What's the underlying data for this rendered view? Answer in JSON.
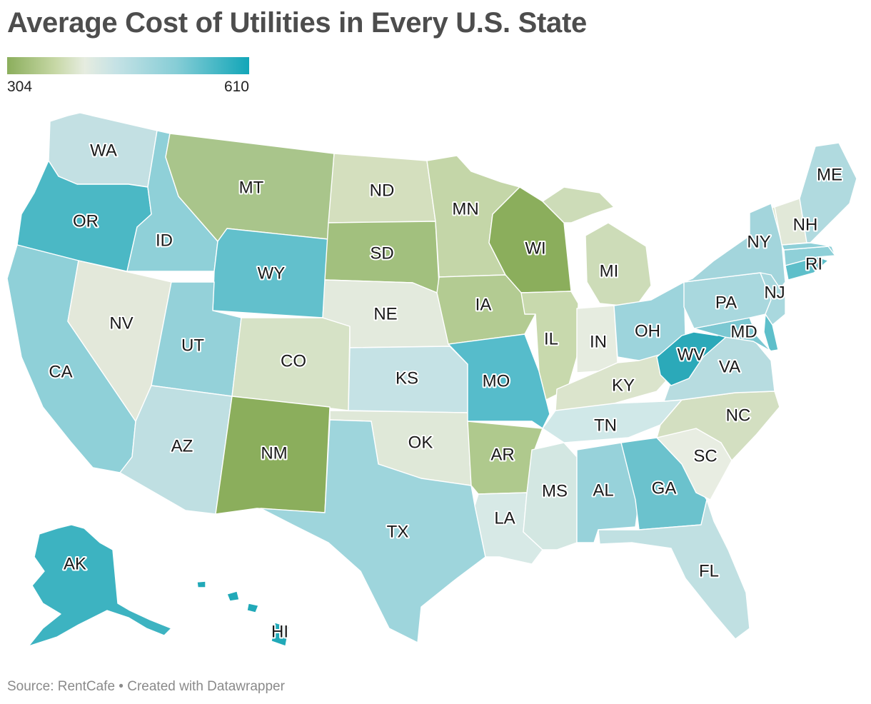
{
  "title": "Average Cost of Utilities in Every U.S. State",
  "legend": {
    "min_label": "304",
    "max_label": "610",
    "colors": [
      "#8bae5c",
      "#c7d8a6",
      "#e6ece0",
      "#c5e2e5",
      "#86cdd6",
      "#12a6b8"
    ]
  },
  "footer": "Source: RentCafe • Created with Datawrapper",
  "states": [
    {
      "abbr": "WA",
      "color": "#c3e0e3"
    },
    {
      "abbr": "OR",
      "color": "#4bb8c5"
    },
    {
      "abbr": "CA",
      "color": "#8fd0d8"
    },
    {
      "abbr": "NV",
      "color": "#e3e8da"
    },
    {
      "abbr": "ID",
      "color": "#8fd0d8"
    },
    {
      "abbr": "MT",
      "color": "#a9c58b"
    },
    {
      "abbr": "WY",
      "color": "#62c0cc"
    },
    {
      "abbr": "UT",
      "color": "#94d1d9"
    },
    {
      "abbr": "AZ",
      "color": "#bfdfe2"
    },
    {
      "abbr": "CO",
      "color": "#d6e2c6"
    },
    {
      "abbr": "NM",
      "color": "#8bae5c"
    },
    {
      "abbr": "ND",
      "color": "#d4dfbe"
    },
    {
      "abbr": "SD",
      "color": "#a2c07e"
    },
    {
      "abbr": "NE",
      "color": "#e3eadd"
    },
    {
      "abbr": "KS",
      "color": "#c5e2e5"
    },
    {
      "abbr": "OK",
      "color": "#dfe8d8"
    },
    {
      "abbr": "TX",
      "color": "#9ed5dc"
    },
    {
      "abbr": "MN",
      "color": "#c4d6a8"
    },
    {
      "abbr": "IA",
      "color": "#b3cb92"
    },
    {
      "abbr": "MO",
      "color": "#56bccb"
    },
    {
      "abbr": "AR",
      "color": "#afc98d"
    },
    {
      "abbr": "LA",
      "color": "#d7e9e6"
    },
    {
      "abbr": "WI",
      "color": "#8bae5c"
    },
    {
      "abbr": "IL",
      "color": "#c8d9ad"
    },
    {
      "abbr": "MI",
      "color": "#cddcb8"
    },
    {
      "abbr": "IN",
      "color": "#e6ece0"
    },
    {
      "abbr": "OH",
      "color": "#9dd4dc"
    },
    {
      "abbr": "KY",
      "color": "#dbe4cc"
    },
    {
      "abbr": "TN",
      "color": "#d0e8e8"
    },
    {
      "abbr": "MS",
      "color": "#d3e7e2"
    },
    {
      "abbr": "AL",
      "color": "#97d2da"
    },
    {
      "abbr": "GA",
      "color": "#6bc2cd"
    },
    {
      "abbr": "FL",
      "color": "#c0e0e2"
    },
    {
      "abbr": "SC",
      "color": "#e8ede2"
    },
    {
      "abbr": "NC",
      "color": "#d3dfc1"
    },
    {
      "abbr": "VA",
      "color": "#b7dce0"
    },
    {
      "abbr": "WV",
      "color": "#2ba9b9"
    },
    {
      "abbr": "MD",
      "color": "#7cc8d2"
    },
    {
      "abbr": "PA",
      "color": "#a9d8de"
    },
    {
      "abbr": "NY",
      "color": "#a3d5dc"
    },
    {
      "abbr": "NJ",
      "color": "#a9d8de"
    },
    {
      "abbr": "RI",
      "color": "#5ebfca"
    },
    {
      "abbr": "NH",
      "color": "#e1e8d8"
    },
    {
      "abbr": "ME",
      "color": "#b0dadf"
    },
    {
      "abbr": "AK",
      "color": "#3db3c1"
    },
    {
      "abbr": "HI",
      "color": "#21a9b8"
    }
  ]
}
